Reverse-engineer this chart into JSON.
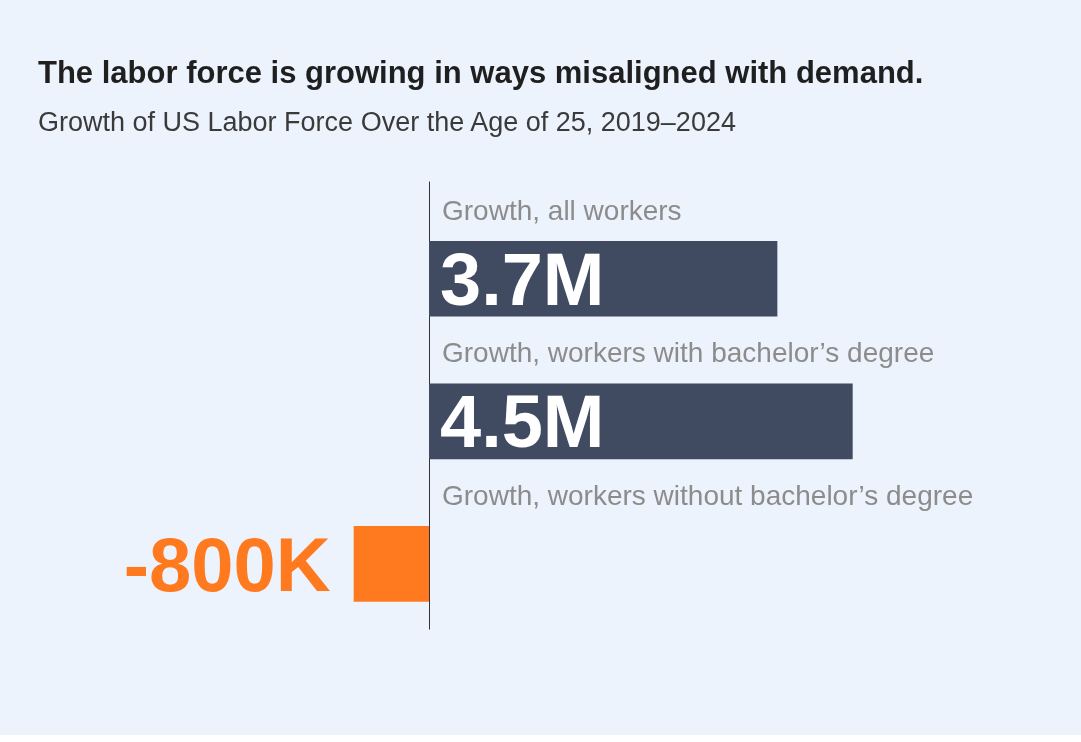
{
  "chart_data": {
    "type": "bar",
    "orientation": "horizontal",
    "title": "The labor force is growing in ways misaligned with demand.",
    "subtitle": "Growth of US Labor Force Over the Age of 25, 2019–2024",
    "categories": [
      "Growth, all workers",
      "Growth, workers with bachelor’s degree",
      "Growth, workers without bachelor’s degree"
    ],
    "values": [
      3700000,
      4500000,
      -800000
    ],
    "colors": [
      "#404a61",
      "#404a61",
      "#ff7a1f"
    ],
    "value_labels": [
      "3.7M",
      "4.5M",
      "-800K"
    ]
  }
}
